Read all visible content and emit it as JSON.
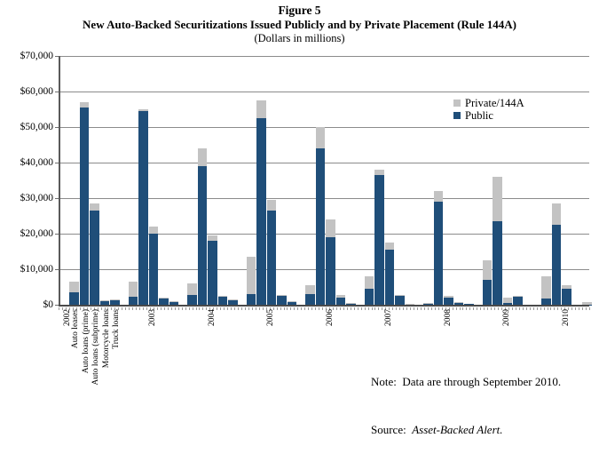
{
  "chart_data": {
    "type": "bar",
    "stacked": true,
    "title": "Figure 5",
    "subtitle": "New Auto-Backed Securitizations Issued Publicly and by Private Placement (Rule 144A)",
    "units": "(Dollars in millions)",
    "ylabel": "",
    "xlabel": "",
    "ylim": [
      0,
      70000
    ],
    "ytick_step": 10000,
    "ytick_labels": [
      "$0",
      "$10,000",
      "$20,000",
      "$30,000",
      "$40,000",
      "$50,000",
      "$60,000",
      "$70,000"
    ],
    "grid": "horizontal",
    "years": [
      "2002",
      "2003",
      "2004",
      "2005",
      "2006",
      "2007",
      "2008",
      "2009",
      "2010"
    ],
    "categories": [
      "Auto leases",
      "Auto loans (prime)",
      "Auto loans (subprime)",
      "Motorcycle loans",
      "Truck loans"
    ],
    "legend": {
      "position": "inside-upper-right",
      "entries": [
        {
          "name": "Private/144A",
          "color": "#c3c3c3"
        },
        {
          "name": "Public",
          "color": "#1f4e79"
        }
      ]
    },
    "series": [
      {
        "name": "Public",
        "color": "#1f4e79",
        "values": [
          [
            3500,
            55500,
            26500,
            1200,
            1400
          ],
          [
            2300,
            54500,
            20000,
            1800,
            900
          ],
          [
            2800,
            39000,
            18000,
            2300,
            1300
          ],
          [
            3000,
            52500,
            26500,
            2500,
            800
          ],
          [
            3000,
            44000,
            19000,
            2000,
            300
          ],
          [
            4500,
            36500,
            15500,
            2500,
            200
          ],
          [
            200,
            29000,
            2000,
            650,
            250
          ],
          [
            7000,
            23500,
            500,
            2400,
            0
          ],
          [
            1800,
            22500,
            4500,
            0,
            100
          ]
        ]
      },
      {
        "name": "Private/144A",
        "color": "#c3c3c3",
        "values": [
          [
            3000,
            1500,
            2000,
            100,
            100
          ],
          [
            4200,
            500,
            2000,
            100,
            100
          ],
          [
            3200,
            5000,
            1500,
            100,
            100
          ],
          [
            10500,
            5000,
            3000,
            300,
            100
          ],
          [
            2500,
            6000,
            5000,
            700,
            200
          ],
          [
            3500,
            1500,
            2000,
            200,
            100
          ],
          [
            400,
            3000,
            400,
            100,
            0
          ],
          [
            5500,
            12500,
            1500,
            200,
            0
          ],
          [
            6200,
            6000,
            1000,
            0,
            700
          ]
        ]
      }
    ],
    "note": "Note:  Data are through September 2010.",
    "source_label": "Source:  ",
    "source_name": "Asset-Backed Alert."
  }
}
